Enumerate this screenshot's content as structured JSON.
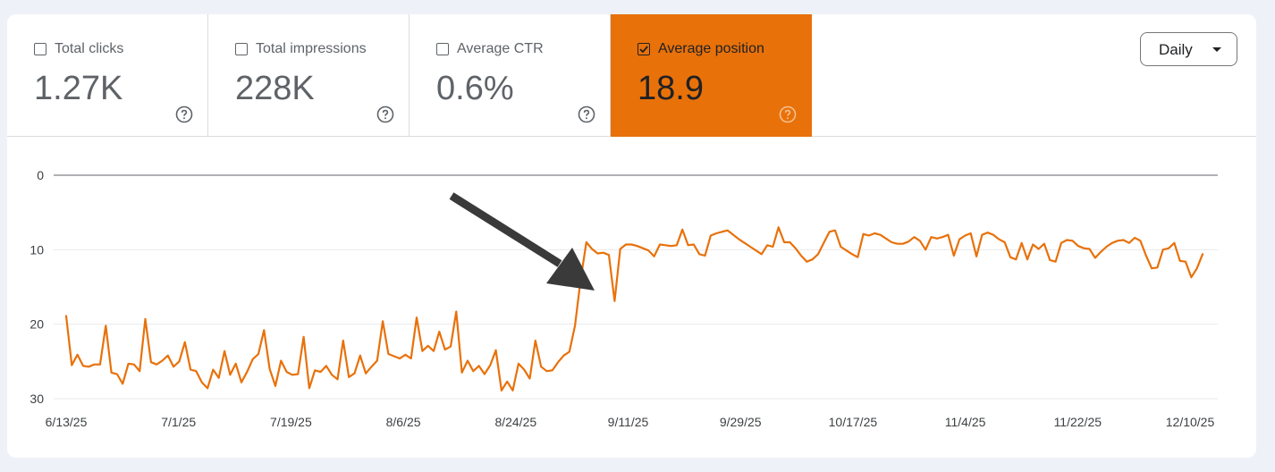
{
  "metrics": [
    {
      "label": "Total clicks",
      "value": "1.27K",
      "checked": false
    },
    {
      "label": "Total impressions",
      "value": "228K",
      "checked": false
    },
    {
      "label": "Average CTR",
      "value": "0.6%",
      "checked": false
    },
    {
      "label": "Average position",
      "value": "18.9",
      "checked": true
    }
  ],
  "period_selector": {
    "label": "Daily"
  },
  "colors": {
    "accent": "#e8710a",
    "line": "#e8710a",
    "arrow": "#3a3a3a"
  },
  "icons": [
    "help-icon",
    "checkbox-icon",
    "dropdown-caret-icon",
    "annotation-arrow"
  ],
  "chart_data": {
    "type": "line",
    "ylim": [
      0,
      30
    ],
    "y_reversed": true,
    "y_ticks": [
      "0",
      "10",
      "20",
      "30"
    ],
    "x_tick_labels": [
      "6/13/25",
      "7/1/25",
      "7/19/25",
      "8/6/25",
      "8/24/25",
      "9/11/25",
      "9/29/25",
      "10/17/25",
      "11/4/25",
      "11/22/25",
      "12/10/25"
    ],
    "x_start": "6/13/25",
    "x_end": "12/12/25",
    "grid": true,
    "series": [
      {
        "values": [
          18.9,
          25.5,
          24.1,
          25.6,
          25.7,
          25.4,
          25.4,
          20.2,
          26.5,
          26.7,
          28.0,
          25.3,
          25.4,
          26.3,
          19.3,
          25.1,
          25.4,
          24.9,
          24.2,
          25.7,
          25.0,
          22.4,
          26.1,
          26.3,
          27.8,
          28.6,
          26.1,
          27.2,
          23.6,
          26.8,
          25.3,
          27.8,
          26.4,
          24.7,
          24.0,
          20.8,
          26.0,
          28.3,
          24.9,
          26.4,
          26.8,
          26.7,
          21.7,
          28.6,
          26.2,
          26.4,
          25.6,
          26.8,
          27.4,
          22.2,
          27.1,
          26.6,
          24.2,
          26.6,
          25.7,
          24.9,
          19.6,
          24.0,
          24.3,
          24.6,
          24.1,
          24.6,
          19.1,
          23.6,
          22.9,
          23.6,
          21.0,
          23.4,
          23.0,
          18.3,
          26.5,
          24.9,
          26.3,
          25.6,
          26.7,
          25.5,
          23.5,
          28.9,
          27.7,
          28.9,
          25.3,
          26.1,
          27.3,
          22.2,
          25.7,
          26.3,
          26.2,
          25.1,
          24.2,
          23.7,
          20.2,
          14.0,
          9.0,
          9.9,
          10.5,
          10.4,
          10.7,
          16.9,
          9.9,
          9.3,
          9.3,
          9.5,
          9.8,
          10.1,
          10.9,
          9.3,
          9.4,
          9.5,
          9.4,
          7.3,
          9.4,
          9.3,
          10.6,
          10.8,
          8.1,
          7.8,
          7.6,
          7.4,
          8.0,
          8.6,
          9.1,
          9.6,
          10.1,
          10.6,
          9.4,
          9.6,
          7.0,
          9.0,
          9.0,
          9.8,
          10.8,
          11.6,
          11.3,
          10.6,
          9.1,
          7.6,
          7.4,
          9.6,
          10.1,
          10.6,
          11.0,
          7.9,
          8.1,
          7.8,
          8.0,
          8.5,
          9.0,
          9.2,
          9.2,
          8.9,
          8.3,
          8.8,
          10.0,
          8.3,
          8.5,
          8.3,
          8.0,
          10.8,
          8.6,
          8.1,
          7.8,
          10.9,
          8.0,
          7.7,
          8.0,
          8.6,
          9.0,
          11.0,
          11.3,
          9.1,
          11.3,
          9.3,
          9.9,
          9.2,
          11.4,
          11.6,
          9.1,
          8.7,
          8.8,
          9.5,
          9.8,
          9.9,
          11.1,
          10.3,
          9.6,
          9.1,
          8.8,
          8.7,
          9.1,
          8.4,
          8.8,
          10.8,
          12.5,
          12.4,
          10.0,
          9.8,
          9.1,
          11.5,
          11.6,
          13.7,
          12.5,
          10.6
        ]
      }
    ]
  }
}
